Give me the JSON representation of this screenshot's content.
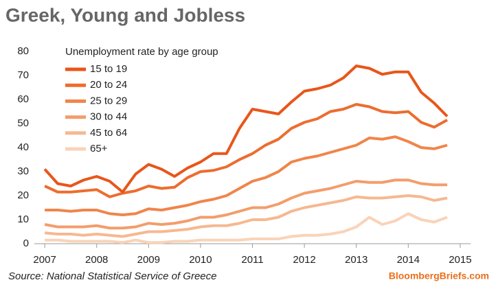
{
  "chart_data": {
    "type": "line",
    "title": "Greek, Young and Jobless",
    "legend_title": "Unemployment rate by age group",
    "source": "Source: National Statistical Service of Greece",
    "brand": "BloombergBriefs.com",
    "x": [
      2007,
      2007.25,
      2007.5,
      2007.75,
      2008,
      2008.25,
      2008.5,
      2008.75,
      2009,
      2009.25,
      2009.5,
      2009.75,
      2010,
      2010.25,
      2010.5,
      2010.75,
      2011,
      2011.25,
      2011.5,
      2011.75,
      2012,
      2012.25,
      2012.5,
      2012.75,
      2013,
      2013.25,
      2013.5,
      2013.75,
      2014,
      2014.25,
      2014.5,
      2014.75
    ],
    "series": [
      {
        "name": "15 to 19",
        "color": "#e8561a",
        "values": [
          31,
          25,
          24,
          26.5,
          28,
          26,
          21.5,
          29,
          33,
          31,
          28,
          31.5,
          34,
          37.5,
          37.5,
          48,
          56,
          55,
          54,
          59,
          63.5,
          64.5,
          66,
          69,
          74,
          73,
          70.5,
          71.5,
          71.5,
          63,
          58.5,
          53
        ]
      },
      {
        "name": "20 to 24",
        "color": "#ec6d2f",
        "values": [
          24,
          21.5,
          21.5,
          22,
          22.5,
          19.5,
          21,
          22,
          24,
          23,
          23.5,
          27.5,
          30,
          30.5,
          32,
          35,
          37.5,
          41,
          43.5,
          48,
          50.5,
          52,
          55,
          56,
          58,
          57,
          55,
          54.5,
          55,
          50.5,
          48.5,
          51.5
        ]
      },
      {
        "name": "25 to 29",
        "color": "#f0854a",
        "values": [
          14,
          14,
          13.5,
          14,
          14,
          12.5,
          12,
          12.5,
          14.5,
          14,
          15,
          16,
          17.5,
          18.5,
          20,
          23,
          26,
          27.5,
          30,
          34,
          35.5,
          36.5,
          38,
          39.5,
          41,
          44,
          43.5,
          44.5,
          42.5,
          40,
          39.5,
          41
        ]
      },
      {
        "name": "30 to 44",
        "color": "#f39d6b",
        "values": [
          8,
          7,
          7,
          7,
          7.5,
          6.5,
          6.5,
          7,
          8.5,
          8,
          8.5,
          9.5,
          11,
          11,
          12,
          13.5,
          15,
          15,
          16.5,
          19,
          21,
          22,
          23,
          24.5,
          26,
          25.5,
          25.5,
          26.5,
          26.5,
          25,
          24.5,
          24.5
        ]
      },
      {
        "name": "45 to 64",
        "color": "#f6b890",
        "values": [
          4.5,
          4,
          4,
          3.5,
          4,
          3.5,
          3,
          4,
          5,
          5,
          5.5,
          6,
          7,
          7.5,
          7.5,
          8.5,
          10,
          10,
          11,
          13.5,
          15,
          16,
          17,
          18,
          19.5,
          19,
          19,
          19.5,
          20,
          19.5,
          18,
          19
        ]
      },
      {
        "name": "65+",
        "color": "#f9d3b8",
        "values": [
          1.5,
          1.5,
          1,
          1,
          1,
          1,
          0.5,
          1.5,
          0.5,
          0.5,
          1,
          1,
          1.5,
          1.5,
          1.5,
          1.5,
          2,
          2,
          2,
          3,
          3.5,
          3.5,
          4,
          5,
          7,
          11,
          8,
          9.5,
          12.5,
          10,
          9,
          11
        ]
      }
    ],
    "xlim": [
      2006.8,
      2015.2
    ],
    "xticks": [
      2007,
      2008,
      2009,
      2010,
      2011,
      2012,
      2013,
      2014,
      2015
    ],
    "ylim": [
      0,
      80
    ],
    "yticks": [
      0,
      10,
      20,
      30,
      40,
      50,
      60,
      70,
      80
    ],
    "grid": false
  }
}
